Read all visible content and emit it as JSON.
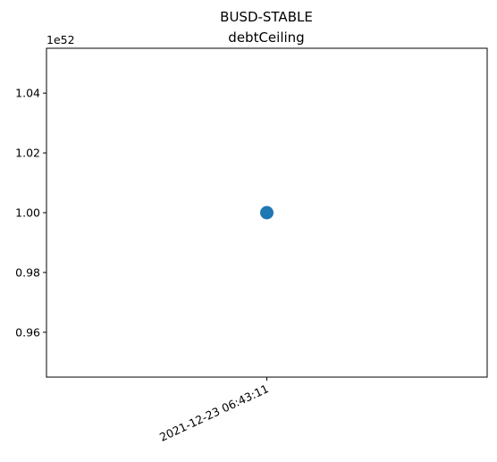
{
  "chart_data": {
    "type": "scatter",
    "title": "BUSD-STABLE",
    "subtitle": "debtCeiling",
    "xlabel": "",
    "ylabel": "",
    "y_offset_label": "1e52",
    "x_categories": [
      "2021-12-23 06:43:11"
    ],
    "points": [
      {
        "x": "2021-12-23 06:43:11",
        "y": 1.0
      }
    ],
    "ylim": [
      0.945,
      1.055
    ],
    "y_ticks": [
      0.96,
      0.98,
      1.0,
      1.02,
      1.04
    ],
    "y_tick_labels": [
      "0.96",
      "0.98",
      "1.00",
      "1.02",
      "1.04"
    ],
    "y_scale_exponent": 52,
    "grid": false,
    "marker_color": "#1f77b4"
  }
}
